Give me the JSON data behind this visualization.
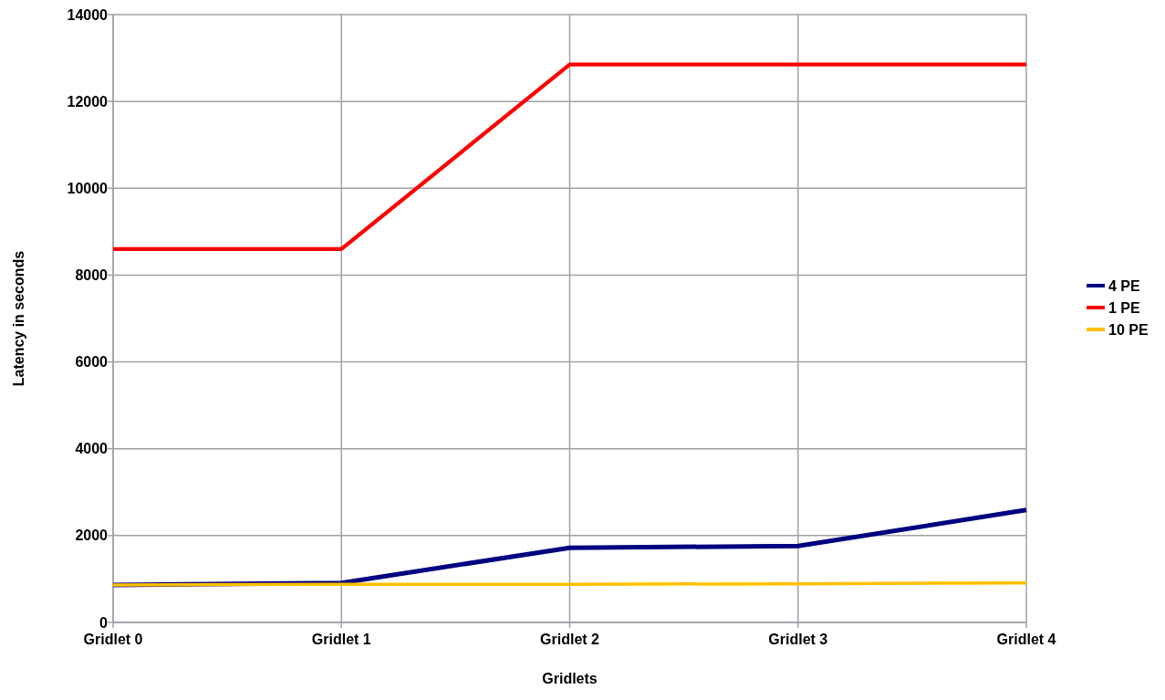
{
  "chart_data": {
    "type": "line",
    "xlabel": "Gridlets",
    "ylabel": "Latency in seconds",
    "categories": [
      "Gridlet 0",
      "Gridlet 1",
      "Gridlet 2",
      "Gridlet 3",
      "Gridlet 4"
    ],
    "series": [
      {
        "name": "4 PE",
        "color": "#000080",
        "values": [
          860,
          910,
          1720,
          1760,
          2590
        ]
      },
      {
        "name": "1 PE",
        "color": "#ff0000",
        "values": [
          8600,
          8600,
          12850,
          12850,
          12850
        ]
      },
      {
        "name": "10 PE",
        "color": "#ffc000",
        "values": [
          860,
          880,
          880,
          890,
          910
        ]
      }
    ],
    "ylim": [
      0,
      14000
    ],
    "yticks": [
      0,
      2000,
      4000,
      6000,
      8000,
      10000,
      12000,
      14000
    ],
    "grid": true,
    "legend": "right",
    "marker": "none",
    "line_style": "solid"
  }
}
